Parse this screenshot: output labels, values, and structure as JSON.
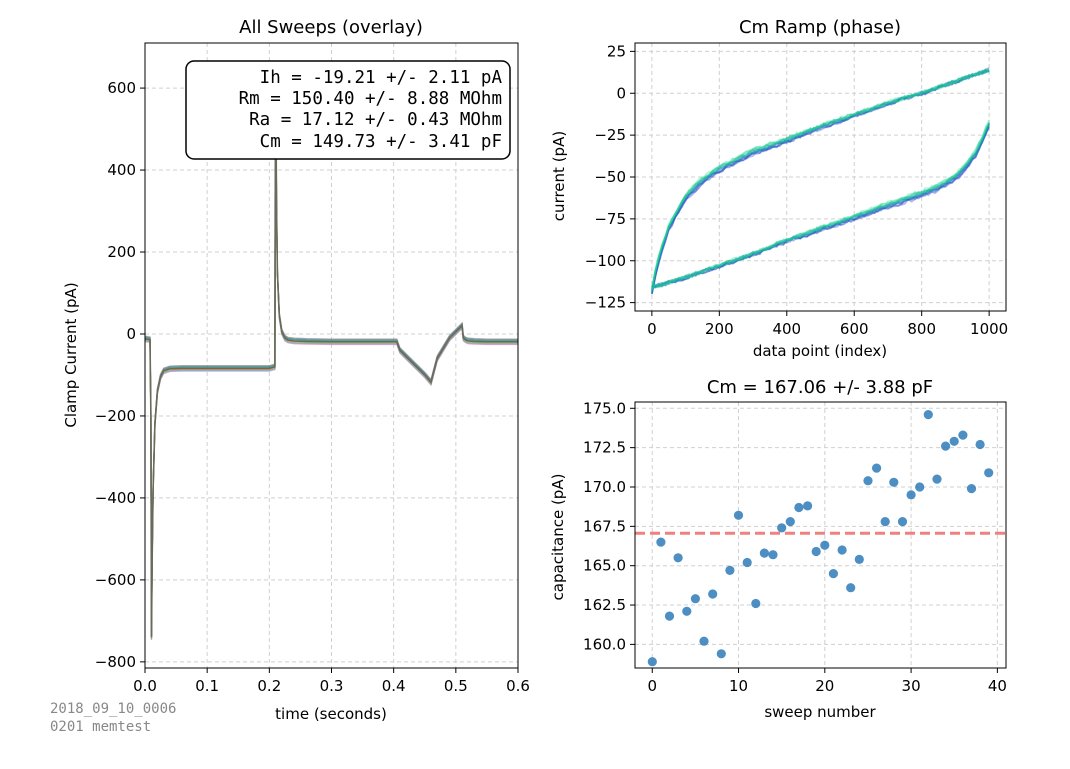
{
  "footer": {
    "line1": "2018_09_10_0006",
    "line2": "0201 memtest"
  },
  "stats": [
    "Ih = -19.21 +/- 2.11 pA",
    "Rm = 150.40 +/- 8.88 MOhm",
    "Ra = 17.12 +/- 0.43 MOhm",
    "Cm = 149.73 +/- 3.41 pF"
  ],
  "chart_data": [
    {
      "type": "line",
      "title": "All Sweeps (overlay)",
      "xlabel": "time (seconds)",
      "ylabel": "Clamp Current (pA)",
      "xlim": [
        0,
        0.6
      ],
      "ylim": [
        -815,
        710
      ],
      "xticks": [
        0.0,
        0.1,
        0.2,
        0.3,
        0.4,
        0.5,
        0.6
      ],
      "xtick_labels": [
        "0.0",
        "0.1",
        "0.2",
        "0.3",
        "0.4",
        "0.5",
        "0.6"
      ],
      "yticks": [
        600,
        400,
        200,
        0,
        -200,
        -400,
        -600,
        -800
      ],
      "ytick_labels": [
        "600",
        "400",
        "200",
        "0",
        "−200",
        "−400",
        "−600",
        "−800"
      ],
      "grid": true,
      "series": [
        {
          "x": [
            0,
            0.008,
            0.0095,
            0.0105,
            0.0115,
            0.013,
            0.016,
            0.02,
            0.025,
            0.03,
            0.04,
            0.06,
            0.1,
            0.15,
            0.2,
            0.209,
            0.2095,
            0.2105,
            0.2115,
            0.213,
            0.216,
            0.22,
            0.225,
            0.23,
            0.24,
            0.26,
            0.3,
            0.35,
            0.405,
            0.41,
            0.43,
            0.45,
            0.46,
            0.47,
            0.49,
            0.51,
            0.512,
            0.516,
            0.52,
            0.53,
            0.55,
            0.6
          ],
          "y": [
            -12,
            -14,
            -200,
            -740,
            -560,
            -380,
            -220,
            -140,
            -105,
            -90,
            -85,
            -84,
            -84,
            -84,
            -84,
            -80,
            320,
            560,
            320,
            150,
            45,
            5,
            -10,
            -15,
            -17,
            -18,
            -19,
            -19,
            -19,
            -40,
            -70,
            -100,
            -118,
            -60,
            -10,
            20,
            -10,
            -15,
            -17,
            -18,
            -19,
            -19
          ]
        }
      ]
    },
    {
      "type": "line",
      "title": "Cm Ramp (phase)",
      "xlabel": "data point (index)",
      "ylabel": "current (pA)",
      "xlim": [
        -50,
        1050
      ],
      "ylim": [
        -130,
        30
      ],
      "xticks": [
        0,
        200,
        400,
        600,
        800,
        1000
      ],
      "xtick_labels": [
        "0",
        "200",
        "400",
        "600",
        "800",
        "1000"
      ],
      "yticks": [
        25,
        0,
        -25,
        -50,
        -75,
        -100,
        -125
      ],
      "ytick_labels": [
        "25",
        "0",
        "−25",
        "−50",
        "−75",
        "−100",
        "−125"
      ],
      "grid": true,
      "series": [
        {
          "name": "",
          "x": [
            0,
            10,
            25,
            50,
            100,
            150,
            200,
            300,
            400,
            500,
            600,
            700,
            800,
            900,
            1000
          ],
          "y": [
            -118,
            -108,
            -95,
            -80,
            -62,
            -52,
            -45,
            -35,
            -28,
            -20,
            -13,
            -6,
            0,
            7,
            14
          ]
        },
        {
          "name": "",
          "x": [
            0,
            50,
            100,
            200,
            300,
            400,
            500,
            600,
            700,
            800,
            850,
            900,
            930,
            960,
            980,
            1000
          ],
          "y": [
            -116,
            -113,
            -110,
            -103,
            -96,
            -88,
            -81,
            -74,
            -67,
            -60,
            -56,
            -50,
            -44,
            -36,
            -28,
            -18
          ]
        }
      ]
    },
    {
      "type": "scatter",
      "title": "Cm = 167.06 +/- 3.88 pF",
      "xlabel": "sweep number",
      "ylabel": "capacitance (pA)",
      "xlim": [
        -2,
        41
      ],
      "ylim": [
        158.5,
        175.4
      ],
      "xticks": [
        0,
        10,
        20,
        30,
        40
      ],
      "xtick_labels": [
        "0",
        "10",
        "20",
        "30",
        "40"
      ],
      "yticks": [
        175.0,
        172.5,
        170.0,
        167.5,
        165.0,
        162.5,
        160.0
      ],
      "ytick_labels": [
        "175.0",
        "172.5",
        "170.0",
        "167.5",
        "165.0",
        "162.5",
        "160.0"
      ],
      "grid": true,
      "mean_line": 167.06,
      "mean_color": "#f08080",
      "point_color": "#2e7ab8",
      "series": [
        {
          "x": [
            0,
            1,
            2,
            3,
            4,
            5,
            6,
            7,
            8,
            9,
            10,
            11,
            12,
            13,
            14,
            15,
            16,
            17,
            18,
            19,
            20,
            21,
            22,
            23,
            24,
            25,
            26,
            27,
            28,
            29,
            30,
            31,
            32,
            33,
            34,
            35,
            36,
            37,
            38,
            39
          ],
          "y": [
            158.9,
            166.5,
            161.8,
            165.5,
            162.1,
            162.9,
            160.2,
            163.2,
            159.4,
            164.7,
            168.2,
            165.2,
            162.6,
            165.8,
            165.7,
            167.4,
            167.8,
            168.7,
            168.8,
            165.9,
            166.3,
            164.5,
            166.0,
            163.6,
            165.4,
            170.4,
            171.2,
            167.8,
            170.3,
            167.8,
            169.5,
            170.0,
            174.6,
            170.5,
            172.6,
            172.9,
            173.3,
            169.9,
            172.7,
            170.9
          ]
        }
      ]
    }
  ]
}
